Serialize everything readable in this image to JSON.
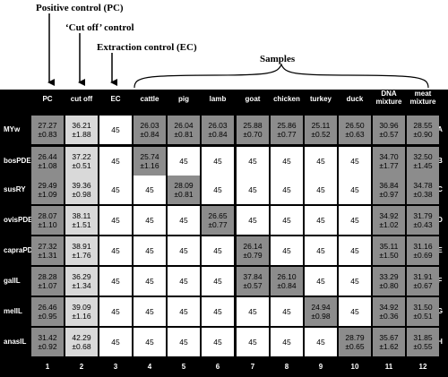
{
  "annotations": {
    "positive_control": "Positive control (PC)",
    "cutoff_control": "‘Cut off’ control",
    "extraction_control": "Extraction control (EC)",
    "samples": "Samples"
  },
  "columns": [
    {
      "header": "PC",
      "number": "1"
    },
    {
      "header": "cut off",
      "number": "2"
    },
    {
      "header": "EC",
      "number": "3"
    },
    {
      "header": "cattle",
      "number": "4"
    },
    {
      "header": "pig",
      "number": "5"
    },
    {
      "header": "lamb",
      "number": "6"
    },
    {
      "header": "goat",
      "number": "7"
    },
    {
      "header": "chicken",
      "number": "8"
    },
    {
      "header": "turkey",
      "number": "9"
    },
    {
      "header": "duck",
      "number": "10"
    },
    {
      "header": "DNA mixture",
      "number": "11"
    },
    {
      "header": "meat mixture",
      "number": "12"
    }
  ],
  "rows": [
    {
      "label": "MYw",
      "letter": "A",
      "cells": [
        {
          "v": "27.27",
          "e": "±0.83",
          "s": "dark"
        },
        {
          "v": "36.21",
          "e": "±1.88",
          "s": "light"
        },
        {
          "v": "45",
          "e": "",
          "s": "white"
        },
        {
          "v": "26.03",
          "e": "±0.84",
          "s": "dark"
        },
        {
          "v": "26.04",
          "e": "±0.81",
          "s": "dark"
        },
        {
          "v": "26.03",
          "e": "±0.84",
          "s": "dark"
        },
        {
          "v": "25.88",
          "e": "±0.70",
          "s": "dark"
        },
        {
          "v": "25.86",
          "e": "±0.77",
          "s": "dark"
        },
        {
          "v": "25.11",
          "e": "±0.52",
          "s": "dark"
        },
        {
          "v": "26.50",
          "e": "±0.63",
          "s": "dark"
        },
        {
          "v": "30.96",
          "e": "±0.57",
          "s": "dark"
        },
        {
          "v": "28.55",
          "e": "±0.90",
          "s": "dark"
        }
      ]
    },
    {
      "label": "bosPDE",
      "letter": "B",
      "cells": [
        {
          "v": "26.44",
          "e": "±1.08",
          "s": "dark"
        },
        {
          "v": "37.22",
          "e": "±0.51",
          "s": "light"
        },
        {
          "v": "45",
          "e": "",
          "s": "white"
        },
        {
          "v": "25.74",
          "e": "±1.16",
          "s": "dark"
        },
        {
          "v": "45",
          "e": "",
          "s": "white"
        },
        {
          "v": "45",
          "e": "",
          "s": "white"
        },
        {
          "v": "45",
          "e": "",
          "s": "white"
        },
        {
          "v": "45",
          "e": "",
          "s": "white"
        },
        {
          "v": "45",
          "e": "",
          "s": "white"
        },
        {
          "v": "45",
          "e": "",
          "s": "white"
        },
        {
          "v": "34.70",
          "e": "±1.77",
          "s": "dark"
        },
        {
          "v": "32.50",
          "e": "±1.45",
          "s": "dark"
        }
      ]
    },
    {
      "label": "susRY",
      "letter": "C",
      "cells": [
        {
          "v": "29.49",
          "e": "±1.09",
          "s": "dark"
        },
        {
          "v": "39.36",
          "e": "±0.98",
          "s": "light"
        },
        {
          "v": "45",
          "e": "",
          "s": "white"
        },
        {
          "v": "45",
          "e": "",
          "s": "white"
        },
        {
          "v": "28.09",
          "e": "±0.81",
          "s": "dark"
        },
        {
          "v": "45",
          "e": "",
          "s": "white"
        },
        {
          "v": "45",
          "e": "",
          "s": "white"
        },
        {
          "v": "45",
          "e": "",
          "s": "white"
        },
        {
          "v": "45",
          "e": "",
          "s": "white"
        },
        {
          "v": "45",
          "e": "",
          "s": "white"
        },
        {
          "v": "36.84",
          "e": "±0.97",
          "s": "dark"
        },
        {
          "v": "34.78",
          "e": "±0.38",
          "s": "dark"
        }
      ]
    },
    {
      "label": "ovisPDE",
      "letter": "D",
      "cells": [
        {
          "v": "28.07",
          "e": "±1.10",
          "s": "dark"
        },
        {
          "v": "38.11",
          "e": "±1.51",
          "s": "light"
        },
        {
          "v": "45",
          "e": "",
          "s": "white"
        },
        {
          "v": "45",
          "e": "",
          "s": "white"
        },
        {
          "v": "45",
          "e": "",
          "s": "white"
        },
        {
          "v": "26.65",
          "e": "±0.77",
          "s": "dark"
        },
        {
          "v": "45",
          "e": "",
          "s": "white"
        },
        {
          "v": "45",
          "e": "",
          "s": "white"
        },
        {
          "v": "45",
          "e": "",
          "s": "white"
        },
        {
          "v": "45",
          "e": "",
          "s": "white"
        },
        {
          "v": "34.92",
          "e": "±1.02",
          "s": "dark"
        },
        {
          "v": "31.79",
          "e": "±0.43",
          "s": "dark"
        }
      ]
    },
    {
      "label": "capraPDE",
      "letter": "E",
      "cells": [
        {
          "v": "27.32",
          "e": "±1.31",
          "s": "dark"
        },
        {
          "v": "38.91",
          "e": "±1.76",
          "s": "light"
        },
        {
          "v": "45",
          "e": "",
          "s": "white"
        },
        {
          "v": "45",
          "e": "",
          "s": "white"
        },
        {
          "v": "45",
          "e": "",
          "s": "white"
        },
        {
          "v": "45",
          "e": "",
          "s": "white"
        },
        {
          "v": "26.14",
          "e": "±0.79",
          "s": "dark"
        },
        {
          "v": "45",
          "e": "",
          "s": "white"
        },
        {
          "v": "45",
          "e": "",
          "s": "white"
        },
        {
          "v": "45",
          "e": "",
          "s": "white"
        },
        {
          "v": "35.11",
          "e": "±1.50",
          "s": "dark"
        },
        {
          "v": "31.16",
          "e": "±0.69",
          "s": "dark"
        }
      ]
    },
    {
      "label": "galIL",
      "letter": "F",
      "cells": [
        {
          "v": "28.28",
          "e": "±1.07",
          "s": "dark"
        },
        {
          "v": "36.29",
          "e": "±1.34",
          "s": "light"
        },
        {
          "v": "45",
          "e": "",
          "s": "white"
        },
        {
          "v": "45",
          "e": "",
          "s": "white"
        },
        {
          "v": "45",
          "e": "",
          "s": "white"
        },
        {
          "v": "45",
          "e": "",
          "s": "white"
        },
        {
          "v": "37.84",
          "e": "±0.57",
          "s": "dark"
        },
        {
          "v": "26.10",
          "e": "±0.84",
          "s": "dark"
        },
        {
          "v": "45",
          "e": "",
          "s": "white"
        },
        {
          "v": "45",
          "e": "",
          "s": "white"
        },
        {
          "v": "33.29",
          "e": "±0.80",
          "s": "dark"
        },
        {
          "v": "31.91",
          "e": "±0.67",
          "s": "dark"
        }
      ]
    },
    {
      "label": "melIL",
      "letter": "G",
      "cells": [
        {
          "v": "26.46",
          "e": "±0.95",
          "s": "dark"
        },
        {
          "v": "39.09",
          "e": "±1.16",
          "s": "light"
        },
        {
          "v": "45",
          "e": "",
          "s": "white"
        },
        {
          "v": "45",
          "e": "",
          "s": "white"
        },
        {
          "v": "45",
          "e": "",
          "s": "white"
        },
        {
          "v": "45",
          "e": "",
          "s": "white"
        },
        {
          "v": "45",
          "e": "",
          "s": "white"
        },
        {
          "v": "45",
          "e": "",
          "s": "white"
        },
        {
          "v": "24.94",
          "e": "±0.98",
          "s": "dark"
        },
        {
          "v": "45",
          "e": "",
          "s": "white"
        },
        {
          "v": "34.92",
          "e": "±0.36",
          "s": "dark"
        },
        {
          "v": "31.50",
          "e": "±0.51",
          "s": "dark"
        }
      ]
    },
    {
      "label": "anasIL",
      "letter": "H",
      "cells": [
        {
          "v": "31.42",
          "e": "±0.92",
          "s": "dark"
        },
        {
          "v": "42.29",
          "e": "±0.68",
          "s": "light"
        },
        {
          "v": "45",
          "e": "",
          "s": "white"
        },
        {
          "v": "45",
          "e": "",
          "s": "white"
        },
        {
          "v": "45",
          "e": "",
          "s": "white"
        },
        {
          "v": "45",
          "e": "",
          "s": "white"
        },
        {
          "v": "45",
          "e": "",
          "s": "white"
        },
        {
          "v": "45",
          "e": "",
          "s": "white"
        },
        {
          "v": "45",
          "e": "",
          "s": "white"
        },
        {
          "v": "28.79",
          "e": "±0.65",
          "s": "dark"
        },
        {
          "v": "35.67",
          "e": "±1.62",
          "s": "dark"
        },
        {
          "v": "31.85",
          "e": "±0.55",
          "s": "dark"
        }
      ]
    }
  ]
}
